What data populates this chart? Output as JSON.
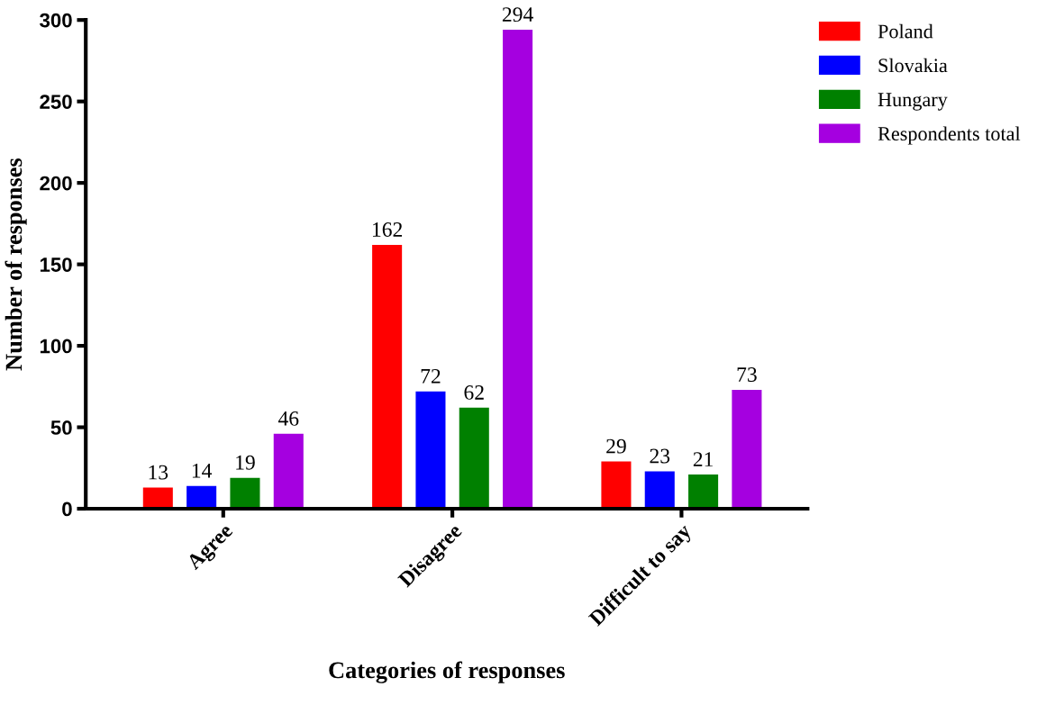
{
  "chart_data": {
    "type": "bar",
    "xlabel": "Categories of responses",
    "ylabel": "Number of responses",
    "categories": [
      "Agree",
      "Disagree",
      "Difficult to say"
    ],
    "series": [
      {
        "name": "Poland",
        "color": "#ff0000",
        "values": [
          13,
          162,
          29
        ]
      },
      {
        "name": "Slovakia",
        "color": "#0000ff",
        "values": [
          14,
          72,
          23
        ]
      },
      {
        "name": "Hungary",
        "color": "#008000",
        "values": [
          19,
          62,
          21
        ]
      },
      {
        "name": "Respondents total",
        "color": "#a500e0",
        "values": [
          46,
          294,
          73
        ]
      }
    ],
    "ylim": [
      0,
      300
    ],
    "yticks": [
      0,
      50,
      100,
      150,
      200,
      250,
      300
    ],
    "data_labels": true,
    "legend": "top right",
    "grid": false
  }
}
